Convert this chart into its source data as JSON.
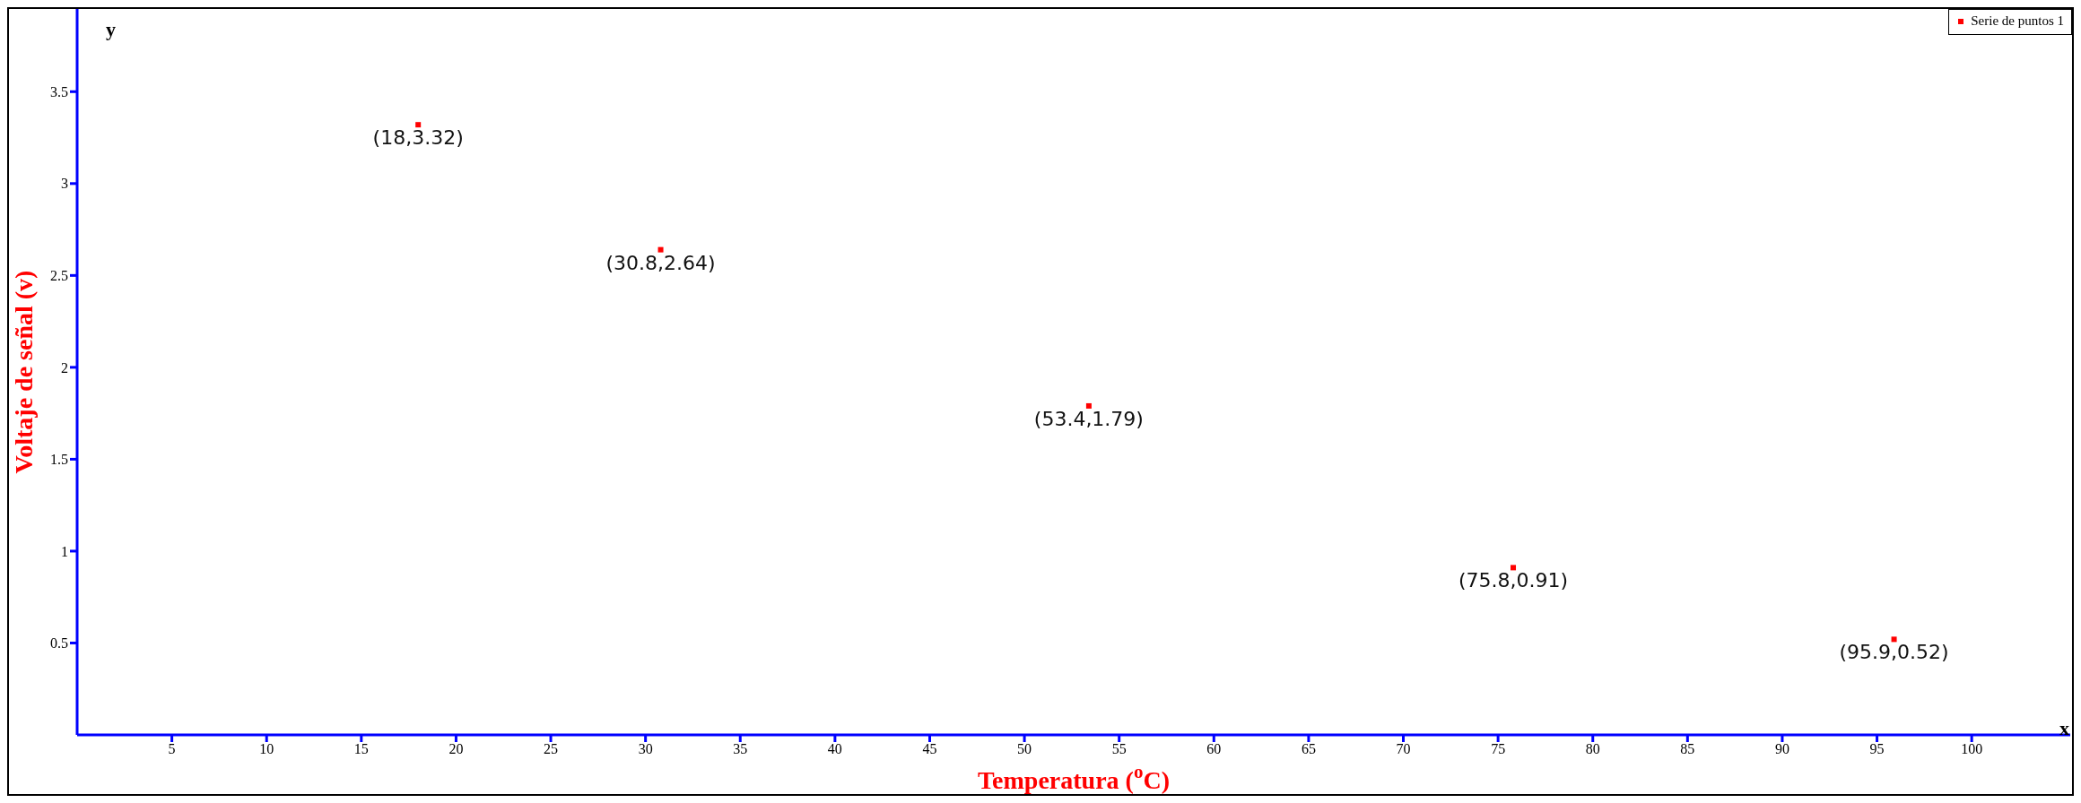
{
  "chart_data": {
    "type": "scatter",
    "xlabel": "Temperatura ($^{o}$C)",
    "ylabel": "Voltaje de señal (v)",
    "annotations": [
      "y",
      "x"
    ],
    "x": [
      18,
      30.8,
      53.4,
      75.8,
      95.9
    ],
    "series": [
      {
        "name": "Serie de puntos 1",
        "color": "#ff0000",
        "values": [
          3.32,
          2.64,
          1.79,
          0.91,
          0.52
        ],
        "value_labels": [
          "(18,3.32)",
          "(30.8,2.64)",
          "(53.4,1.79)",
          "(75.8,0.91)",
          "(95.9,0.52)"
        ]
      }
    ],
    "xlim": [
      0,
      105.2
    ],
    "ylim": [
      0,
      3.95
    ],
    "xticks": [
      5,
      10,
      15,
      20,
      25,
      30,
      35,
      40,
      45,
      50,
      55,
      60,
      65,
      70,
      75,
      80,
      85,
      90,
      95,
      100
    ],
    "yticks": [
      0.5,
      1,
      1.5,
      2,
      2.5,
      3,
      3.5
    ],
    "grid": false,
    "legend": "top right",
    "marker": "square"
  }
}
